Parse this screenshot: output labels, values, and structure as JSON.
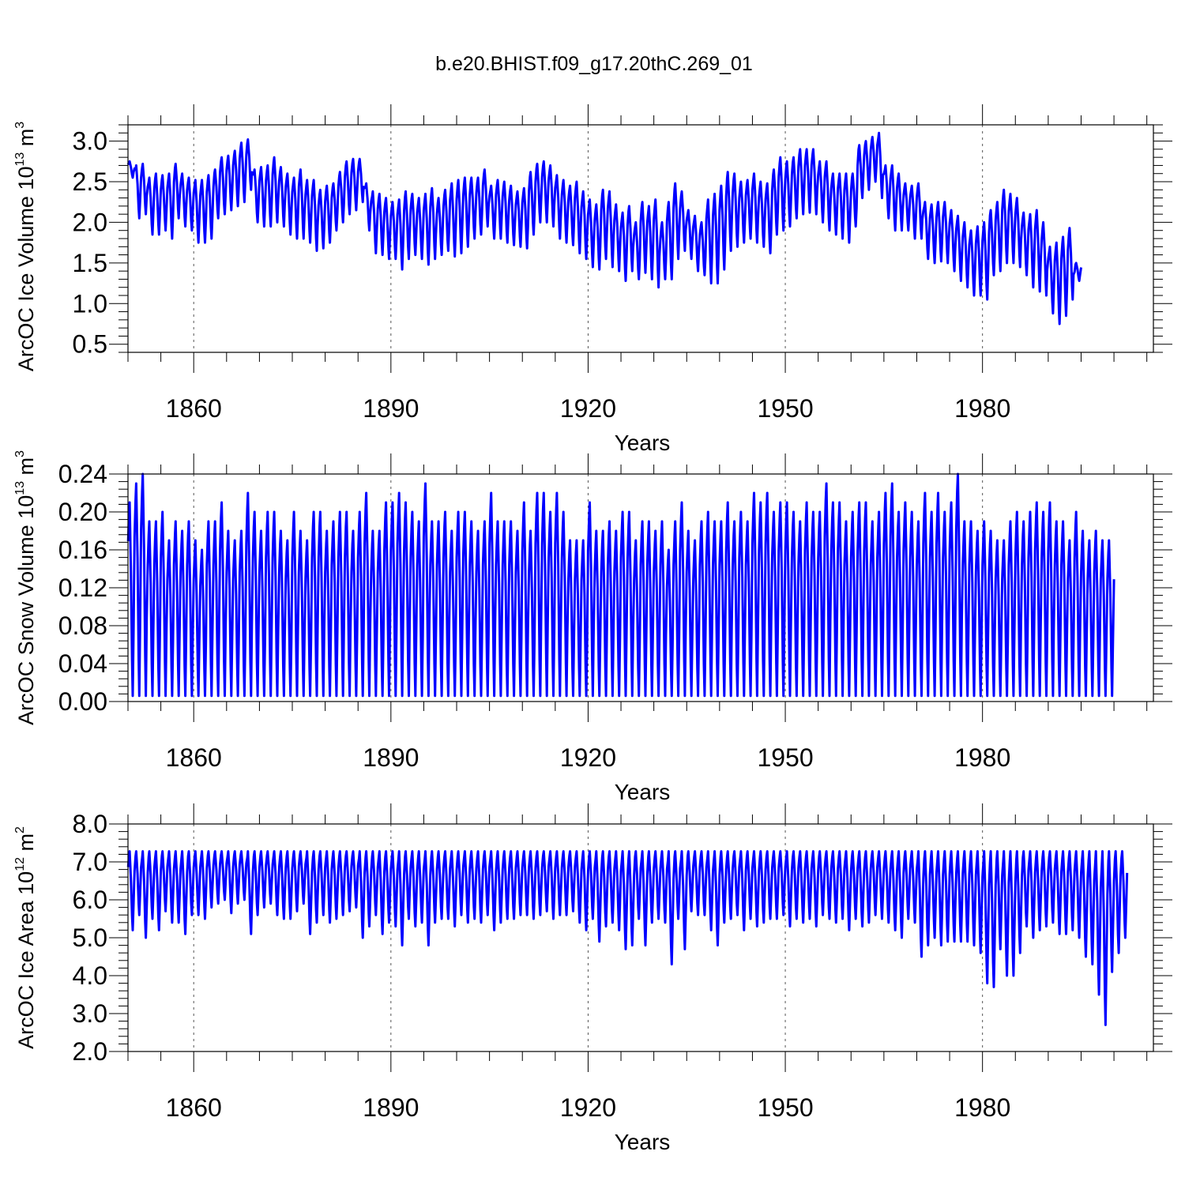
{
  "figure": {
    "title": "b.e20.BHIST.f09_g17.20thC.269_01",
    "series_color": "#0000ff"
  },
  "chart_data": [
    {
      "type": "line",
      "title": "b.e20.BHIST.f09_g17.20thC.269_01",
      "ylabel": {
        "text": "ArcOC Ice Volume 10",
        "exp1": "13",
        "unit": " m",
        "exp2": "3"
      },
      "xlabel": "Years",
      "xlim": [
        1850,
        2006
      ],
      "ylim": [
        0.4,
        3.2
      ],
      "x_ticks": [
        1860,
        1890,
        1920,
        1950,
        1980
      ],
      "x_tick_labels": [
        "1860",
        "1890",
        "1920",
        "1950",
        "1980"
      ],
      "y_ticks": [
        0.5,
        1.0,
        1.5,
        2.0,
        2.5,
        3.0
      ],
      "y_tick_labels": [
        "0.5",
        "1.0",
        "1.5",
        "2.0",
        "2.5",
        "3.0"
      ],
      "grid": "dashed vertical lines at labeled years",
      "series": [
        {
          "x_start": 1850,
          "annual_max": [
            2.75,
            2.7,
            2.72,
            2.55,
            2.6,
            2.58,
            2.6,
            2.72,
            2.6,
            2.55,
            2.52,
            2.52,
            2.58,
            2.65,
            2.8,
            2.82,
            2.88,
            2.98,
            3.02,
            2.65,
            2.68,
            2.7,
            2.8,
            2.68,
            2.6,
            2.55,
            2.65,
            2.52,
            2.52,
            2.4,
            2.45,
            2.48,
            2.62,
            2.75,
            2.78,
            2.78,
            2.48,
            2.38,
            2.35,
            2.3,
            2.25,
            2.28,
            2.38,
            2.35,
            2.3,
            2.35,
            2.42,
            2.3,
            2.4,
            2.48,
            2.52,
            2.55,
            2.55,
            2.55,
            2.65,
            2.45,
            2.52,
            2.5,
            2.45,
            2.38,
            2.42,
            2.62,
            2.72,
            2.75,
            2.7,
            2.58,
            2.52,
            2.45,
            2.5,
            2.38,
            2.28,
            2.22,
            2.4,
            2.38,
            2.22,
            2.12,
            2.2,
            2.0,
            2.25,
            2.2,
            2.28,
            2.0,
            2.25,
            2.48,
            2.38,
            2.15,
            2.08,
            2.0,
            2.28,
            2.35,
            2.45,
            2.62,
            2.6,
            2.5,
            2.52,
            2.6,
            2.5,
            2.48,
            2.65,
            2.8,
            2.75,
            2.8,
            2.9,
            2.9,
            2.9,
            2.75,
            2.75,
            2.6,
            2.6,
            2.6,
            2.6,
            2.95,
            3.0,
            3.05,
            3.1,
            2.7,
            2.7,
            2.6,
            2.48,
            2.45,
            2.48,
            2.25,
            2.22,
            2.25,
            2.25,
            2.15,
            2.08,
            2.0,
            1.9,
            1.95,
            2.0,
            2.15,
            2.25,
            2.4,
            2.35,
            2.3,
            2.12,
            2.1,
            2.15,
            2.0,
            1.7,
            1.75,
            1.82,
            1.93,
            1.5
          ],
          "annual_min": [
            2.55,
            2.05,
            2.1,
            1.85,
            1.85,
            1.9,
            1.8,
            2.05,
            1.95,
            1.9,
            1.75,
            1.75,
            1.8,
            2.05,
            2.1,
            2.15,
            2.2,
            2.25,
            2.4,
            2.0,
            1.95,
            1.95,
            2.0,
            1.95,
            1.85,
            1.8,
            1.8,
            1.75,
            1.65,
            1.68,
            1.75,
            1.9,
            2.0,
            2.1,
            2.15,
            2.25,
            1.9,
            1.62,
            1.6,
            1.55,
            1.55,
            1.42,
            1.55,
            1.6,
            1.55,
            1.48,
            1.55,
            1.6,
            1.65,
            1.58,
            1.62,
            1.7,
            1.8,
            1.85,
            1.95,
            1.8,
            1.8,
            1.75,
            1.72,
            1.7,
            1.68,
            1.85,
            2.0,
            2.0,
            1.95,
            1.8,
            1.75,
            1.72,
            1.62,
            1.55,
            1.45,
            1.42,
            1.55,
            1.45,
            1.4,
            1.28,
            1.4,
            1.3,
            1.38,
            1.3,
            1.2,
            1.3,
            1.3,
            1.55,
            1.65,
            1.55,
            1.4,
            1.35,
            1.25,
            1.25,
            1.42,
            1.65,
            1.7,
            1.75,
            1.8,
            1.75,
            1.7,
            1.62,
            1.85,
            1.9,
            1.95,
            2.05,
            2.1,
            2.12,
            2.1,
            2.0,
            1.9,
            1.85,
            1.8,
            1.75,
            1.95,
            2.3,
            2.4,
            2.5,
            2.3,
            2.05,
            1.9,
            1.9,
            1.9,
            1.8,
            1.8,
            1.55,
            1.5,
            1.52,
            1.5,
            1.4,
            1.28,
            1.2,
            1.1,
            1.1,
            1.05,
            1.35,
            1.4,
            1.5,
            1.5,
            1.45,
            1.35,
            1.2,
            1.15,
            1.1,
            0.88,
            0.75,
            0.85,
            1.05,
            1.28
          ]
        }
      ]
    },
    {
      "type": "line",
      "ylabel": {
        "text": "ArcOC Snow Volume 10",
        "exp1": "13",
        "unit": " m",
        "exp2": "3"
      },
      "xlabel": "Years",
      "xlim": [
        1850,
        2006
      ],
      "ylim": [
        0.0,
        0.24
      ],
      "x_ticks": [
        1860,
        1890,
        1920,
        1950,
        1980
      ],
      "x_tick_labels": [
        "1860",
        "1890",
        "1920",
        "1950",
        "1980"
      ],
      "y_ticks": [
        0.0,
        0.04,
        0.08,
        0.12,
        0.16,
        0.2,
        0.24
      ],
      "y_tick_labels": [
        "0.00",
        "0.04",
        "0.08",
        "0.12",
        "0.16",
        "0.20",
        "0.24"
      ],
      "grid": "dashed vertical lines at labeled years",
      "series": [
        {
          "x_start": 1850,
          "annual_max": [
            0.21,
            0.23,
            0.24,
            0.19,
            0.19,
            0.2,
            0.17,
            0.19,
            0.18,
            0.19,
            0.17,
            0.16,
            0.19,
            0.19,
            0.21,
            0.18,
            0.17,
            0.18,
            0.22,
            0.2,
            0.18,
            0.2,
            0.2,
            0.18,
            0.17,
            0.2,
            0.18,
            0.17,
            0.2,
            0.2,
            0.18,
            0.19,
            0.2,
            0.2,
            0.18,
            0.2,
            0.22,
            0.18,
            0.18,
            0.21,
            0.21,
            0.22,
            0.21,
            0.2,
            0.19,
            0.23,
            0.19,
            0.19,
            0.2,
            0.18,
            0.2,
            0.2,
            0.19,
            0.18,
            0.19,
            0.22,
            0.19,
            0.19,
            0.19,
            0.18,
            0.21,
            0.18,
            0.22,
            0.22,
            0.2,
            0.22,
            0.2,
            0.17,
            0.17,
            0.17,
            0.21,
            0.18,
            0.18,
            0.19,
            0.18,
            0.2,
            0.2,
            0.17,
            0.19,
            0.19,
            0.18,
            0.19,
            0.16,
            0.19,
            0.21,
            0.18,
            0.17,
            0.19,
            0.2,
            0.19,
            0.19,
            0.21,
            0.19,
            0.2,
            0.19,
            0.22,
            0.21,
            0.22,
            0.2,
            0.21,
            0.21,
            0.2,
            0.19,
            0.21,
            0.2,
            0.2,
            0.23,
            0.21,
            0.21,
            0.19,
            0.2,
            0.21,
            0.21,
            0.19,
            0.2,
            0.22,
            0.23,
            0.2,
            0.21,
            0.2,
            0.19,
            0.22,
            0.2,
            0.22,
            0.2,
            0.21,
            0.24,
            0.19,
            0.19,
            0.18,
            0.19,
            0.18,
            0.17,
            0.17,
            0.19,
            0.2,
            0.19,
            0.2,
            0.21,
            0.2,
            0.21,
            0.19,
            0.19,
            0.17,
            0.2,
            0.18,
            0.17,
            0.18,
            0.17,
            0.17
          ],
          "annual_min": 0.006
        }
      ]
    },
    {
      "type": "line",
      "ylabel": {
        "text": "ArcOC Ice Area 10",
        "exp1": "12",
        "unit": " m",
        "exp2": "2"
      },
      "xlabel": "Years",
      "xlim": [
        1850,
        2006
      ],
      "ylim": [
        2.0,
        8.0
      ],
      "x_ticks": [
        1860,
        1890,
        1920,
        1950,
        1980
      ],
      "x_tick_labels": [
        "1860",
        "1890",
        "1920",
        "1950",
        "1980"
      ],
      "y_ticks": [
        2.0,
        3.0,
        4.0,
        5.0,
        6.0,
        7.0,
        8.0
      ],
      "y_tick_labels": [
        "2.0",
        "3.0",
        "4.0",
        "5.0",
        "6.0",
        "7.0",
        "8.0"
      ],
      "grid": "dashed vertical lines at labeled years",
      "series": [
        {
          "x_start": 1850,
          "annual_max": 7.28,
          "annual_min": [
            5.2,
            5.6,
            5.0,
            5.5,
            5.2,
            5.7,
            5.4,
            5.4,
            5.1,
            5.6,
            5.6,
            5.5,
            5.8,
            5.9,
            6.0,
            5.65,
            5.9,
            6.0,
            5.1,
            5.6,
            5.8,
            5.9,
            5.6,
            5.5,
            5.5,
            5.7,
            5.9,
            5.1,
            5.4,
            5.6,
            5.4,
            5.5,
            5.6,
            5.7,
            5.8,
            5.0,
            5.3,
            5.6,
            5.1,
            5.4,
            5.3,
            4.8,
            5.5,
            5.3,
            5.4,
            4.8,
            5.4,
            5.5,
            5.5,
            5.3,
            5.6,
            5.4,
            5.5,
            5.4,
            5.6,
            5.2,
            5.4,
            5.5,
            5.5,
            5.6,
            5.6,
            5.5,
            5.6,
            5.7,
            5.5,
            5.6,
            5.6,
            5.7,
            5.4,
            5.2,
            5.5,
            4.9,
            5.3,
            5.4,
            5.2,
            4.7,
            4.8,
            5.5,
            4.8,
            5.4,
            5.5,
            5.4,
            4.3,
            5.5,
            4.7,
            5.7,
            5.6,
            5.6,
            5.2,
            4.8,
            5.4,
            5.5,
            5.6,
            5.2,
            5.5,
            5.3,
            5.4,
            5.5,
            5.5,
            5.6,
            5.3,
            5.5,
            5.4,
            5.5,
            5.3,
            5.6,
            5.5,
            5.4,
            5.5,
            5.2,
            5.5,
            5.3,
            5.4,
            5.6,
            5.5,
            5.4,
            5.2,
            5.0,
            5.5,
            5.4,
            4.5,
            4.8,
            5.0,
            4.8,
            4.9,
            4.9,
            4.9,
            4.9,
            4.8,
            4.6,
            3.8,
            3.7,
            4.7,
            4.0,
            4.0,
            4.6,
            5.3,
            5.0,
            5.2,
            5.3,
            5.4,
            5.1,
            5.1,
            5.2,
            5.0,
            4.5,
            4.3,
            3.5,
            2.7,
            4.1,
            4.6,
            5.0
          ]
        }
      ]
    }
  ]
}
